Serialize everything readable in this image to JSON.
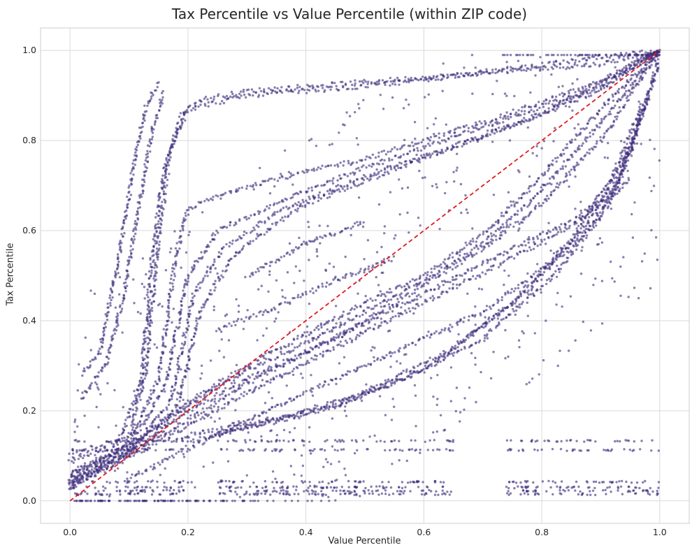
{
  "chart_data": {
    "type": "scatter",
    "title": "Tax Percentile vs Value Percentile (within ZIP code)",
    "xlabel": "Value Percentile",
    "ylabel": "Tax Percentile",
    "xlim": [
      -0.05,
      1.05
    ],
    "ylim": [
      -0.05,
      1.05
    ],
    "xticks": [
      "0.0",
      "0.2",
      "0.4",
      "0.6",
      "0.8",
      "1.0"
    ],
    "yticks": [
      "0.0",
      "0.2",
      "0.4",
      "0.6",
      "0.8",
      "1.0"
    ],
    "grid": true,
    "point_color": "#3b2a7a",
    "point_opacity": 0.6,
    "reference_line": {
      "style": "dashed",
      "color": "#e31a1c",
      "from": [
        0,
        0
      ],
      "to": [
        1,
        1
      ]
    },
    "series": [
      {
        "curves": [
          [
            [
              0.02,
              0.28
            ],
            [
              0.05,
              0.33
            ],
            [
              0.08,
              0.52
            ],
            [
              0.11,
              0.76
            ],
            [
              0.13,
              0.88
            ],
            [
              0.15,
              0.93
            ]
          ],
          [
            [
              0.02,
              0.23
            ],
            [
              0.06,
              0.3
            ],
            [
              0.09,
              0.45
            ],
            [
              0.12,
              0.68
            ],
            [
              0.14,
              0.83
            ],
            [
              0.16,
              0.91
            ]
          ],
          [
            [
              0.0,
              0.09
            ],
            [
              0.08,
              0.12
            ],
            [
              0.12,
              0.26
            ],
            [
              0.14,
              0.55
            ],
            [
              0.16,
              0.74
            ],
            [
              0.19,
              0.86
            ],
            [
              0.22,
              0.89
            ],
            [
              0.3,
              0.91
            ],
            [
              0.5,
              0.93
            ],
            [
              0.7,
              0.95
            ],
            [
              0.9,
              0.97
            ],
            [
              1.0,
              1.0
            ]
          ],
          [
            [
              0.0,
              0.1
            ],
            [
              0.1,
              0.14
            ],
            [
              0.13,
              0.3
            ],
            [
              0.15,
              0.58
            ],
            [
              0.17,
              0.78
            ],
            [
              0.2,
              0.87
            ],
            [
              0.3,
              0.9
            ],
            [
              0.5,
              0.92
            ],
            [
              0.75,
              0.96
            ],
            [
              1.0,
              1.0
            ]
          ],
          [
            [
              0.0,
              0.06
            ],
            [
              0.1,
              0.13
            ],
            [
              0.15,
              0.27
            ],
            [
              0.18,
              0.55
            ],
            [
              0.2,
              0.65
            ],
            [
              0.3,
              0.7
            ],
            [
              0.5,
              0.76
            ],
            [
              0.7,
              0.84
            ],
            [
              0.9,
              0.93
            ],
            [
              1.0,
              1.0
            ]
          ],
          [
            [
              0.0,
              0.05
            ],
            [
              0.1,
              0.12
            ],
            [
              0.16,
              0.25
            ],
            [
              0.2,
              0.5
            ],
            [
              0.25,
              0.6
            ],
            [
              0.35,
              0.66
            ],
            [
              0.5,
              0.74
            ],
            [
              0.7,
              0.83
            ],
            [
              0.9,
              0.92
            ],
            [
              1.0,
              1.0
            ]
          ],
          [
            [
              0.0,
              0.04
            ],
            [
              0.1,
              0.11
            ],
            [
              0.17,
              0.22
            ],
            [
              0.21,
              0.46
            ],
            [
              0.26,
              0.56
            ],
            [
              0.35,
              0.64
            ],
            [
              0.5,
              0.72
            ],
            [
              0.7,
              0.81
            ],
            [
              0.9,
              0.91
            ],
            [
              1.0,
              1.0
            ]
          ],
          [
            [
              0.0,
              0.06
            ],
            [
              0.12,
              0.14
            ],
            [
              0.18,
              0.2
            ],
            [
              0.22,
              0.42
            ],
            [
              0.28,
              0.55
            ],
            [
              0.4,
              0.66
            ],
            [
              0.6,
              0.76
            ],
            [
              0.8,
              0.86
            ],
            [
              1.0,
              1.0
            ]
          ],
          [
            [
              0.0,
              0.03
            ],
            [
              0.1,
              0.1
            ],
            [
              0.2,
              0.2
            ],
            [
              0.3,
              0.27
            ],
            [
              0.4,
              0.33
            ],
            [
              0.5,
              0.4
            ],
            [
              0.6,
              0.48
            ],
            [
              0.7,
              0.56
            ],
            [
              0.8,
              0.66
            ],
            [
              0.9,
              0.8
            ],
            [
              1.0,
              1.0
            ]
          ],
          [
            [
              0.0,
              0.04
            ],
            [
              0.1,
              0.11
            ],
            [
              0.2,
              0.21
            ],
            [
              0.3,
              0.29
            ],
            [
              0.4,
              0.35
            ],
            [
              0.5,
              0.42
            ],
            [
              0.6,
              0.49
            ],
            [
              0.7,
              0.57
            ],
            [
              0.8,
              0.69
            ],
            [
              0.9,
              0.84
            ],
            [
              1.0,
              1.0
            ]
          ],
          [
            [
              0.0,
              0.05
            ],
            [
              0.1,
              0.12
            ],
            [
              0.2,
              0.22
            ],
            [
              0.3,
              0.3
            ],
            [
              0.4,
              0.37
            ],
            [
              0.5,
              0.44
            ],
            [
              0.6,
              0.5
            ],
            [
              0.7,
              0.59
            ],
            [
              0.8,
              0.72
            ],
            [
              0.9,
              0.87
            ],
            [
              1.0,
              1.0
            ]
          ],
          [
            [
              0.0,
              0.04
            ],
            [
              0.15,
              0.14
            ],
            [
              0.3,
              0.26
            ],
            [
              0.45,
              0.36
            ],
            [
              0.6,
              0.46
            ],
            [
              0.75,
              0.56
            ],
            [
              0.85,
              0.62
            ],
            [
              0.93,
              0.7
            ],
            [
              1.0,
              0.98
            ]
          ],
          [
            [
              0.0,
              0.03
            ],
            [
              0.15,
              0.13
            ],
            [
              0.3,
              0.24
            ],
            [
              0.45,
              0.34
            ],
            [
              0.6,
              0.44
            ],
            [
              0.75,
              0.54
            ],
            [
              0.85,
              0.61
            ],
            [
              0.92,
              0.68
            ],
            [
              1.0,
              0.97
            ]
          ],
          [
            [
              0.18,
              0.14
            ],
            [
              0.3,
              0.17
            ],
            [
              0.45,
              0.21
            ],
            [
              0.6,
              0.29
            ],
            [
              0.75,
              0.44
            ],
            [
              0.85,
              0.58
            ],
            [
              0.92,
              0.72
            ],
            [
              0.97,
              0.88
            ]
          ],
          [
            [
              0.2,
              0.13
            ],
            [
              0.35,
              0.18
            ],
            [
              0.5,
              0.24
            ],
            [
              0.65,
              0.34
            ],
            [
              0.78,
              0.47
            ],
            [
              0.88,
              0.62
            ],
            [
              0.95,
              0.78
            ],
            [
              0.98,
              0.9
            ]
          ],
          [
            [
              0.25,
              0.15
            ],
            [
              0.4,
              0.19
            ],
            [
              0.55,
              0.26
            ],
            [
              0.7,
              0.36
            ],
            [
              0.82,
              0.5
            ],
            [
              0.9,
              0.63
            ],
            [
              0.96,
              0.8
            ]
          ],
          [
            [
              0.1,
              0.05
            ],
            [
              0.3,
              0.18
            ],
            [
              0.5,
              0.3
            ],
            [
              0.7,
              0.42
            ],
            [
              0.85,
              0.56
            ],
            [
              0.95,
              0.72
            ]
          ],
          [
            [
              0.25,
              0.38
            ],
            [
              0.35,
              0.43
            ],
            [
              0.45,
              0.49
            ],
            [
              0.55,
              0.54
            ]
          ],
          [
            [
              0.3,
              0.5
            ],
            [
              0.4,
              0.57
            ],
            [
              0.5,
              0.62
            ]
          ]
        ]
      }
    ],
    "bands_y": [
      0.015,
      0.022,
      0.03,
      0.042,
      0.113,
      0.133
    ],
    "band_ranges": [
      [
        0.0,
        0.2
      ],
      [
        0.25,
        0.65
      ],
      [
        0.74,
        1.0
      ]
    ]
  }
}
